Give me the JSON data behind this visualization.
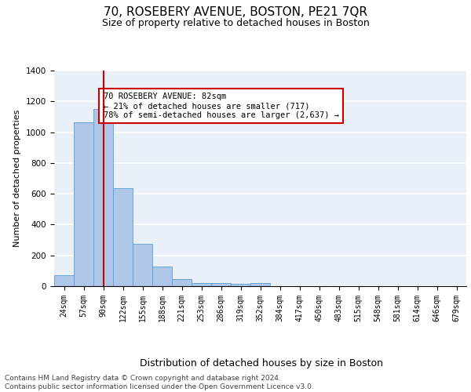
{
  "title": "70, ROSEBERY AVENUE, BOSTON, PE21 7QR",
  "subtitle": "Size of property relative to detached houses in Boston",
  "xlabel": "Distribution of detached houses by size in Boston",
  "ylabel": "Number of detached properties",
  "bins": [
    "24sqm",
    "57sqm",
    "90sqm",
    "122sqm",
    "155sqm",
    "188sqm",
    "221sqm",
    "253sqm",
    "286sqm",
    "319sqm",
    "352sqm",
    "384sqm",
    "417sqm",
    "450sqm",
    "483sqm",
    "515sqm",
    "548sqm",
    "581sqm",
    "614sqm",
    "646sqm",
    "679sqm"
  ],
  "values": [
    70,
    1065,
    1150,
    635,
    275,
    125,
    47,
    22,
    18,
    17,
    18,
    0,
    0,
    0,
    0,
    0,
    0,
    0,
    0,
    0,
    0
  ],
  "bar_color": "#aec6e8",
  "bar_edge_color": "#5a9fd4",
  "property_bin_index": 2,
  "vline_color": "#cc0000",
  "annotation_text": "70 ROSEBERY AVENUE: 82sqm\n← 21% of detached houses are smaller (717)\n78% of semi-detached houses are larger (2,637) →",
  "annotation_box_color": "#cc0000",
  "annotation_fontsize": 7.5,
  "ylim": [
    0,
    1400
  ],
  "yticks": [
    0,
    200,
    400,
    600,
    800,
    1000,
    1200,
    1400
  ],
  "background_color": "#eaf0f8",
  "grid_color": "#ffffff",
  "footer": "Contains HM Land Registry data © Crown copyright and database right 2024.\nContains public sector information licensed under the Open Government Licence v3.0.",
  "title_fontsize": 11,
  "subtitle_fontsize": 9,
  "xlabel_fontsize": 9,
  "ylabel_fontsize": 8,
  "tick_fontsize": 7,
  "footer_fontsize": 6.5
}
